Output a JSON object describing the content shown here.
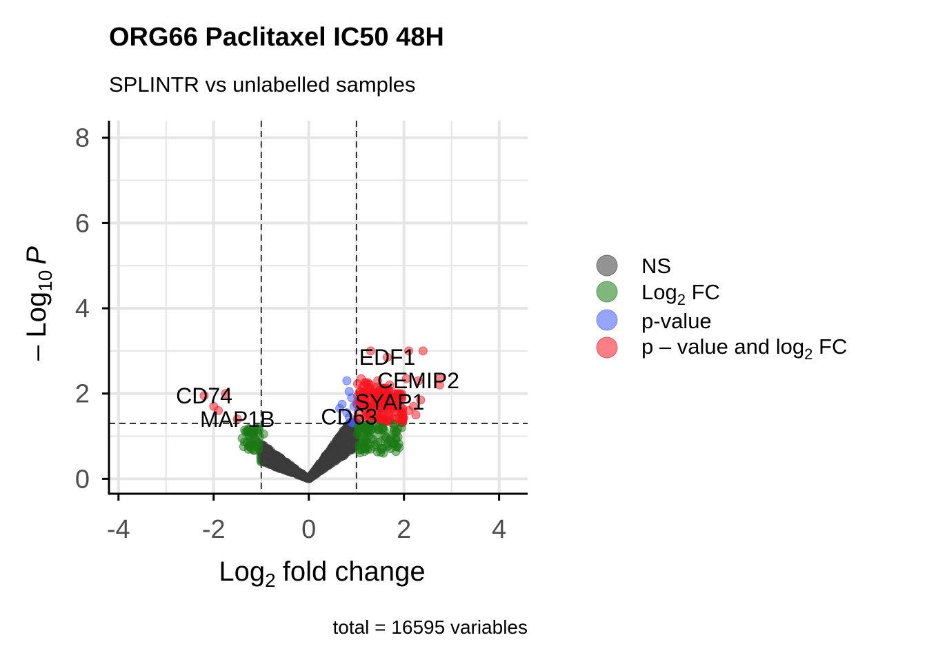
{
  "chart_data": {
    "type": "scatter",
    "title": "ORG66 Paclitaxel IC50 48H",
    "subtitle": "SPLINTR vs unlabelled samples",
    "xlabel": "fold change",
    "xlabel_prefix": "Log",
    "xlabel_sub": "2",
    "ylabel_prefix": "– Log",
    "ylabel_sub": "10",
    "ylabel_var": "P",
    "caption": "total = 16595 variables",
    "xlim": [
      -4.2,
      4.6
    ],
    "ylim": [
      -0.35,
      8.4
    ],
    "x_ticks": [
      "-4",
      "-2",
      "0",
      "2",
      "4"
    ],
    "y_ticks": [
      "0",
      "2",
      "4",
      "6",
      "8"
    ],
    "fc_cutoff": 1,
    "p_cutoff_log10": 1.3,
    "grid": true,
    "legend_position": "right",
    "legend": [
      {
        "key": "ns",
        "label": "NS",
        "color": "#3b3b3b"
      },
      {
        "key": "fc",
        "label_prefix": "Log",
        "label_sub": "2",
        "label_suffix": " FC",
        "color": "#1a7a14"
      },
      {
        "key": "p",
        "label": "p-value",
        "color": "#3d5bf5"
      },
      {
        "key": "both",
        "label_prefix": "p – value and log",
        "label_sub": "2",
        "label_suffix": " FC",
        "color": "#f5141e"
      }
    ],
    "labeled_points": [
      {
        "label": "EDF1",
        "x": 1.65,
        "y": 2.85
      },
      {
        "label": "CEMIP2",
        "x": 2.3,
        "y": 2.3
      },
      {
        "label": "SYAP1",
        "x": 1.7,
        "y": 1.8
      },
      {
        "label": "CD63",
        "x": 0.85,
        "y": 1.45
      },
      {
        "label": "CD74",
        "x": -2.2,
        "y": 1.95
      },
      {
        "label": "MAP1B",
        "x": -1.5,
        "y": 1.4
      }
    ],
    "highlight_points": [
      {
        "x": 1.3,
        "y": 3.0,
        "cls": "both"
      },
      {
        "x": 1.65,
        "y": 2.85,
        "cls": "both"
      },
      {
        "x": 2.1,
        "y": 3.0,
        "cls": "both"
      },
      {
        "x": 2.4,
        "y": 3.0,
        "cls": "both"
      },
      {
        "x": 2.3,
        "y": 2.3,
        "cls": "both"
      },
      {
        "x": 2.75,
        "y": 2.35,
        "cls": "both"
      },
      {
        "x": 2.75,
        "y": 2.2,
        "cls": "both"
      },
      {
        "x": 2.05,
        "y": 2.35,
        "cls": "both"
      },
      {
        "x": 1.1,
        "y": 2.35,
        "cls": "both"
      },
      {
        "x": 1.25,
        "y": 2.25,
        "cls": "both"
      },
      {
        "x": 1.45,
        "y": 2.3,
        "cls": "both"
      },
      {
        "x": 1.7,
        "y": 2.2,
        "cls": "both"
      },
      {
        "x": 1.9,
        "y": 2.0,
        "cls": "both"
      },
      {
        "x": 2.35,
        "y": 1.85,
        "cls": "both"
      },
      {
        "x": 2.2,
        "y": 1.7,
        "cls": "both"
      },
      {
        "x": 2.1,
        "y": 1.6,
        "cls": "both"
      },
      {
        "x": 1.7,
        "y": 1.8,
        "cls": "both"
      },
      {
        "x": 1.55,
        "y": 1.95,
        "cls": "both"
      },
      {
        "x": 1.35,
        "y": 1.75,
        "cls": "both"
      },
      {
        "x": 1.2,
        "y": 1.6,
        "cls": "both"
      },
      {
        "x": 1.9,
        "y": 1.4,
        "cls": "both"
      },
      {
        "x": 2.25,
        "y": 1.5,
        "cls": "both"
      },
      {
        "x": -2.2,
        "y": 1.95,
        "cls": "both"
      },
      {
        "x": -1.75,
        "y": 2.0,
        "cls": "both"
      },
      {
        "x": -2.0,
        "y": 1.7,
        "cls": "both"
      },
      {
        "x": -1.9,
        "y": 1.6,
        "cls": "both"
      },
      {
        "x": -1.5,
        "y": 1.4,
        "cls": "both"
      },
      {
        "x": 0.8,
        "y": 2.3,
        "cls": "p"
      },
      {
        "x": 0.85,
        "y": 2.05,
        "cls": "p"
      },
      {
        "x": 0.9,
        "y": 1.9,
        "cls": "p"
      },
      {
        "x": 0.7,
        "y": 1.75,
        "cls": "p"
      },
      {
        "x": 0.65,
        "y": 1.65,
        "cls": "p"
      },
      {
        "x": 0.8,
        "y": 1.55,
        "cls": "p"
      },
      {
        "x": 0.95,
        "y": 1.7,
        "cls": "p"
      },
      {
        "x": 0.85,
        "y": 1.45,
        "cls": "p"
      },
      {
        "x": -1.4,
        "y": 0.95,
        "cls": "fc"
      },
      {
        "x": -1.3,
        "y": 0.85,
        "cls": "fc"
      },
      {
        "x": -1.2,
        "y": 1.1,
        "cls": "fc"
      },
      {
        "x": -1.1,
        "y": 0.75,
        "cls": "fc"
      },
      {
        "x": -1.05,
        "y": 1.2,
        "cls": "fc"
      },
      {
        "x": -1.2,
        "y": 0.7,
        "cls": "fc"
      },
      {
        "x": -0.95,
        "y": 1.05,
        "cls": "fc"
      },
      {
        "x": 1.2,
        "y": 0.9,
        "cls": "fc"
      },
      {
        "x": 1.4,
        "y": 0.8,
        "cls": "fc"
      },
      {
        "x": 1.6,
        "y": 1.0,
        "cls": "fc"
      },
      {
        "x": 1.7,
        "y": 0.9,
        "cls": "fc"
      },
      {
        "x": 1.85,
        "y": 1.1,
        "cls": "fc"
      },
      {
        "x": 1.95,
        "y": 1.2,
        "cls": "fc"
      },
      {
        "x": 1.05,
        "y": 1.25,
        "cls": "fc"
      },
      {
        "x": 1.3,
        "y": 1.15,
        "cls": "fc"
      }
    ]
  }
}
